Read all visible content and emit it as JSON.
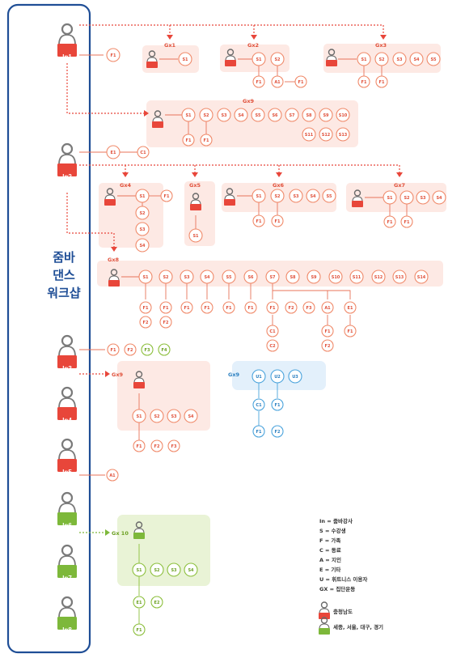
{
  "title_lines": [
    "줌바",
    "댄스",
    "워크샵"
  ],
  "instructors": [
    "In1",
    "In2",
    "In3",
    "In4",
    "In5",
    "In6",
    "In7",
    "In8"
  ],
  "groups": {
    "gx1": "Gx1",
    "gx2": "Gx2",
    "gx3": "Gx3",
    "gx4": "Gx4",
    "gx5": "Gx5",
    "gx6": "Gx6",
    "gx7": "Gx7",
    "gx8": "Gx8",
    "gx9": "Gx9",
    "gx10": "Gx 10"
  },
  "legend": {
    "definitions": [
      "In = 줌바강사",
      "S = 수강생",
      "F = 가족",
      "C = 동료",
      "A = 지인",
      "E = 기타",
      "U = 휘트니스 이용자",
      "GX = 집단운동"
    ],
    "region_red": "충청남도",
    "region_green": "세종, 서울, 대구, 경기"
  },
  "colors": {
    "accent_red": "#e8463a",
    "accent_green": "#7db83a",
    "accent_blue": "#4aa3dc",
    "title_navy": "#1f4e96"
  }
}
